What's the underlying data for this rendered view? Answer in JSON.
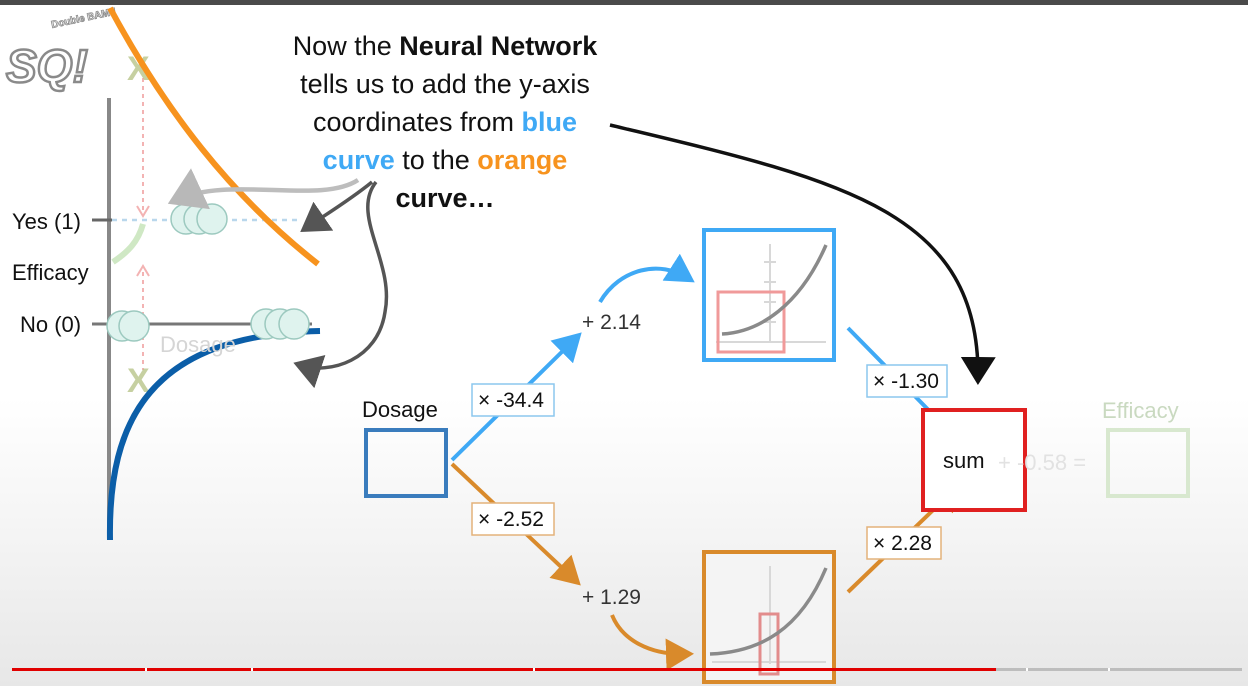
{
  "caption": {
    "line1_a": "Now the ",
    "line1_b": "Neural Network",
    "line2": "tells us to add the y-axis",
    "line3_a": "coordinates from ",
    "line3_b": "blue",
    "line4_a": "curve",
    "line4_b": " to the ",
    "line4_c": "orange",
    "line5": "curve…"
  },
  "graph": {
    "yes_label": "Yes (1)",
    "efficacy_label": "Efficacy",
    "no_label": "No (0)",
    "dosage_label": "Dosage",
    "x_marks": [
      "X",
      "X"
    ]
  },
  "logo": {
    "letters": "SQ!",
    "tag": "Double BAM!!"
  },
  "network": {
    "input_label": "Dosage",
    "weight_top": "× -34.4",
    "weight_bottom": "× -2.52",
    "bias_top": "+ 2.14",
    "bias_bottom": "+ 1.29",
    "out_weight_top": "× -1.30",
    "out_weight_bottom": "× 2.28",
    "sum_label": "sum",
    "final_bias": "+ -0.58 =",
    "output_label": "Efficacy"
  },
  "colors": {
    "blue": "#3fa9f5",
    "orange": "#f7931e",
    "dark_blue": "#0b5ea8",
    "red": "#e02020",
    "input_box": "#3a7cbd",
    "progress": "#e00000"
  },
  "video": {
    "progress_fraction": 0.8
  }
}
